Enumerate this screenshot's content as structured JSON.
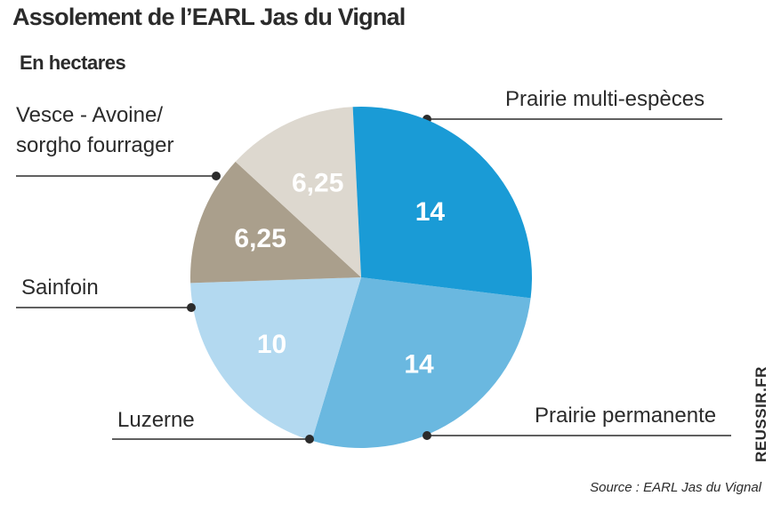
{
  "header": {
    "title": "Assolement de l’EARL Jas du Vignal",
    "subtitle": "En hectares"
  },
  "footer": {
    "watermark": "REUSSIR.FR",
    "source": "Source : EARL Jas du Vignal"
  },
  "chart_data": {
    "type": "pie",
    "title": "Assolement de l’EARL Jas du Vignal",
    "subtitle": "En hectares",
    "slices": [
      {
        "label": "Prairie multi-espèces",
        "value": 14,
        "value_label": "14",
        "color": "#6ab8e0",
        "label_lines": [
          "Prairie multi-espèces"
        ]
      },
      {
        "label": "Prairie permanente",
        "value": 10,
        "value_label": "10",
        "color": "#b3d9f0",
        "label_lines": [
          "Prairie permanente"
        ]
      },
      {
        "label": "Luzerne",
        "value": 6.25,
        "value_label": "6,25",
        "color": "#aa9f8c",
        "label_lines": [
          "Luzerne"
        ]
      },
      {
        "label": "Sainfoin",
        "value": 6.25,
        "value_label": "6,25",
        "color": "#ddd8cf",
        "label_lines": [
          "Sainfoin"
        ]
      },
      {
        "label": "Vesce - Avoine/sorgho fourrager",
        "value": 14,
        "value_label": "14",
        "color": "#1a9bd6",
        "label_lines": [
          "Vesce - Avoine/",
          "sorgho fourrager"
        ]
      }
    ]
  }
}
